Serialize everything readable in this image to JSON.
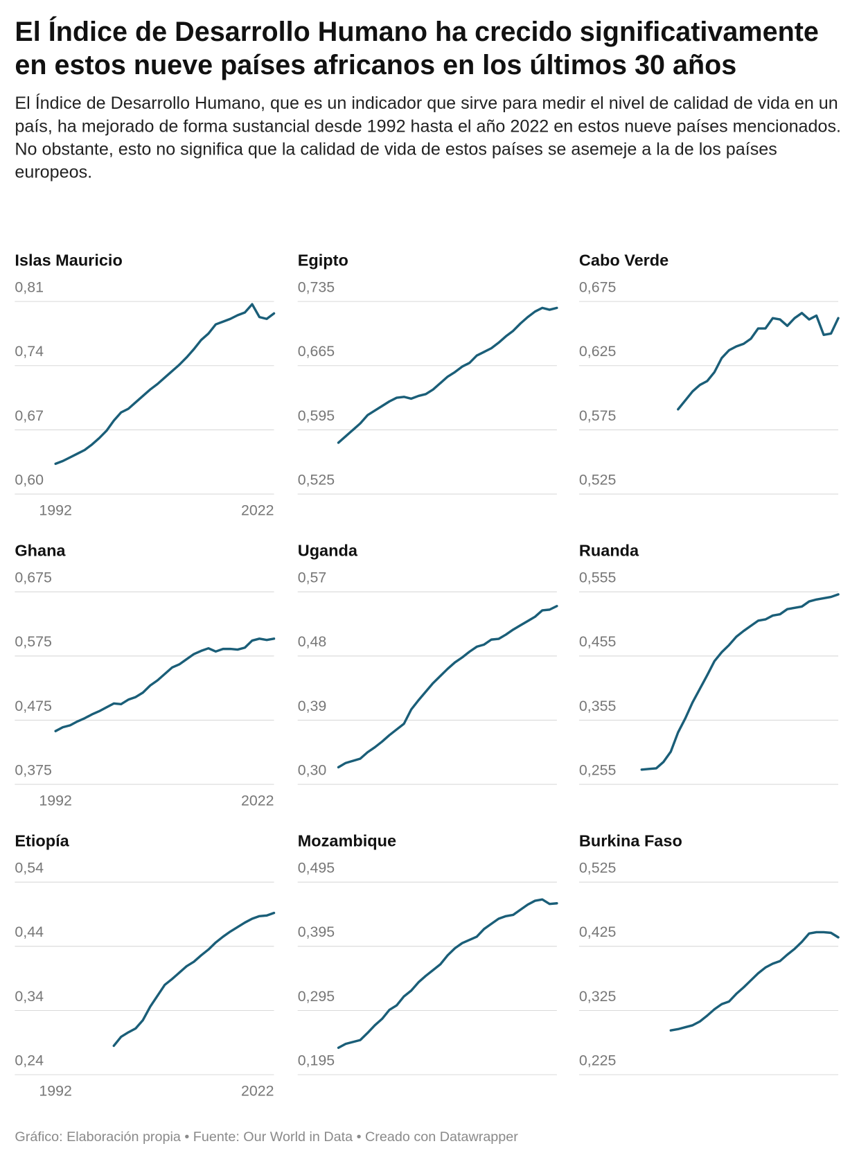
{
  "title": "El Índice de Desarrollo Humano ha crecido significativamente en estos nueve países africanos en los últimos 30 años",
  "subtitle": "El Índice de Desarrollo Humano, que es un indicador que sirve para medir el nivel de calidad de vida en un país, ha mejorado de forma sustancial desde 1992 hasta el año 2022 en estos nueve países mencionados. No obstante, esto no significa que la calidad de vida de estos países se asemeje a la de los países europeos.",
  "source": "Gráfico: Elaboración propia • Fuente: Our World in Data • Creado con Datawrapper",
  "chart_data": [
    {
      "type": "line",
      "title": "Islas Mauricio",
      "color": "#1a5e78",
      "grid": true,
      "x": [
        1992,
        1993,
        1994,
        1995,
        1996,
        1997,
        1998,
        1999,
        2000,
        2001,
        2002,
        2003,
        2004,
        2005,
        2006,
        2007,
        2008,
        2009,
        2010,
        2011,
        2012,
        2013,
        2014,
        2015,
        2016,
        2017,
        2018,
        2019,
        2020,
        2021,
        2022
      ],
      "values": [
        0.633,
        0.636,
        0.64,
        0.644,
        0.648,
        0.654,
        0.661,
        0.669,
        0.68,
        0.689,
        0.693,
        0.7,
        0.707,
        0.714,
        0.72,
        0.727,
        0.734,
        0.741,
        0.749,
        0.758,
        0.768,
        0.775,
        0.785,
        0.788,
        0.791,
        0.795,
        0.798,
        0.807,
        0.793,
        0.791,
        0.797
      ],
      "xlim": [
        1992,
        2022
      ],
      "xticks": [
        1992,
        2022
      ],
      "ylim": [
        0.6,
        0.81
      ],
      "yticks": [
        {
          "value": 0.6,
          "label": "0,60"
        },
        {
          "value": 0.67,
          "label": "0,67"
        },
        {
          "value": 0.74,
          "label": "0,74"
        },
        {
          "value": 0.81,
          "label": "0,81"
        }
      ]
    },
    {
      "type": "line",
      "title": "Egipto",
      "color": "#1a5e78",
      "grid": true,
      "x": [
        1992,
        1993,
        1994,
        1995,
        1996,
        1997,
        1998,
        1999,
        2000,
        2001,
        2002,
        2003,
        2004,
        2005,
        2006,
        2007,
        2008,
        2009,
        2010,
        2011,
        2012,
        2013,
        2014,
        2015,
        2016,
        2017,
        2018,
        2019,
        2020,
        2021,
        2022
      ],
      "values": [
        0.581,
        0.588,
        0.595,
        0.602,
        0.611,
        0.616,
        0.621,
        0.626,
        0.63,
        0.631,
        0.629,
        0.632,
        0.634,
        0.639,
        0.646,
        0.653,
        0.658,
        0.664,
        0.668,
        0.676,
        0.68,
        0.684,
        0.69,
        0.697,
        0.703,
        0.711,
        0.718,
        0.724,
        0.728,
        0.726,
        0.728
      ],
      "xlim": [
        1992,
        2022
      ],
      "ylim": [
        0.525,
        0.735
      ],
      "yticks": [
        {
          "value": 0.525,
          "label": "0,525"
        },
        {
          "value": 0.595,
          "label": "0,595"
        },
        {
          "value": 0.665,
          "label": "0,665"
        },
        {
          "value": 0.735,
          "label": "0,735"
        }
      ]
    },
    {
      "type": "line",
      "title": "Cabo Verde",
      "color": "#1a5e78",
      "grid": true,
      "x": [
        1992,
        1993,
        1994,
        1995,
        1996,
        1997,
        1998,
        1999,
        2000,
        2001,
        2002,
        2003,
        2004,
        2005,
        2006,
        2007,
        2008,
        2009,
        2010,
        2011,
        2012,
        2013,
        2014,
        2015,
        2016,
        2017,
        2018,
        2019,
        2020,
        2021,
        2022
      ],
      "values": [
        null,
        null,
        null,
        null,
        null,
        null,
        null,
        null,
        0.591,
        0.598,
        0.605,
        0.61,
        0.613,
        0.62,
        0.631,
        0.637,
        0.64,
        0.642,
        0.646,
        0.654,
        0.654,
        0.662,
        0.661,
        0.656,
        0.662,
        0.666,
        0.661,
        0.664,
        0.649,
        0.65,
        0.662
      ],
      "xlim": [
        1992,
        2022
      ],
      "ylim": [
        0.525,
        0.675
      ],
      "yticks": [
        {
          "value": 0.525,
          "label": "0,525"
        },
        {
          "value": 0.575,
          "label": "0,575"
        },
        {
          "value": 0.625,
          "label": "0,625"
        },
        {
          "value": 0.675,
          "label": "0,675"
        }
      ]
    },
    {
      "type": "line",
      "title": "Ghana",
      "color": "#1a5e78",
      "grid": true,
      "x": [
        1992,
        1993,
        1994,
        1995,
        1996,
        1997,
        1998,
        1999,
        2000,
        2001,
        2002,
        2003,
        2004,
        2005,
        2006,
        2007,
        2008,
        2009,
        2010,
        2011,
        2012,
        2013,
        2014,
        2015,
        2016,
        2017,
        2018,
        2019,
        2020,
        2021,
        2022
      ],
      "values": [
        0.458,
        0.464,
        0.467,
        0.473,
        0.478,
        0.484,
        0.489,
        0.495,
        0.501,
        0.5,
        0.507,
        0.511,
        0.518,
        0.529,
        0.537,
        0.547,
        0.557,
        0.562,
        0.57,
        0.578,
        0.583,
        0.587,
        0.582,
        0.586,
        0.586,
        0.585,
        0.588,
        0.599,
        0.602,
        0.6,
        0.602
      ],
      "xlim": [
        1992,
        2022
      ],
      "xticks": [
        1992,
        2022
      ],
      "ylim": [
        0.375,
        0.675
      ],
      "yticks": [
        {
          "value": 0.375,
          "label": "0,375"
        },
        {
          "value": 0.475,
          "label": "0,475"
        },
        {
          "value": 0.575,
          "label": "0,575"
        },
        {
          "value": 0.675,
          "label": "0,675"
        }
      ]
    },
    {
      "type": "line",
      "title": "Uganda",
      "color": "#1a5e78",
      "grid": true,
      "x": [
        1992,
        1993,
        1994,
        1995,
        1996,
        1997,
        1998,
        1999,
        2000,
        2001,
        2002,
        2003,
        2004,
        2005,
        2006,
        2007,
        2008,
        2009,
        2010,
        2011,
        2012,
        2013,
        2014,
        2015,
        2016,
        2017,
        2018,
        2019,
        2020,
        2021,
        2022
      ],
      "values": [
        0.324,
        0.33,
        0.333,
        0.336,
        0.345,
        0.352,
        0.36,
        0.369,
        0.377,
        0.385,
        0.405,
        0.418,
        0.43,
        0.442,
        0.452,
        0.462,
        0.471,
        0.478,
        0.486,
        0.493,
        0.496,
        0.503,
        0.504,
        0.51,
        0.517,
        0.523,
        0.529,
        0.535,
        0.544,
        0.545,
        0.55
      ],
      "xlim": [
        1992,
        2022
      ],
      "ylim": [
        0.3,
        0.57
      ],
      "yticks": [
        {
          "value": 0.3,
          "label": "0,30"
        },
        {
          "value": 0.39,
          "label": "0,39"
        },
        {
          "value": 0.48,
          "label": "0,48"
        },
        {
          "value": 0.57,
          "label": "0,57"
        }
      ]
    },
    {
      "type": "line",
      "title": "Ruanda",
      "color": "#1a5e78",
      "grid": true,
      "x": [
        1992,
        1993,
        1994,
        1995,
        1996,
        1997,
        1998,
        1999,
        2000,
        2001,
        2002,
        2003,
        2004,
        2005,
        2006,
        2007,
        2008,
        2009,
        2010,
        2011,
        2012,
        2013,
        2014,
        2015,
        2016,
        2017,
        2018,
        2019,
        2020,
        2021,
        2022
      ],
      "values": [
        null,
        null,
        null,
        0.278,
        0.279,
        0.28,
        0.29,
        0.306,
        0.336,
        0.358,
        0.383,
        0.404,
        0.425,
        0.447,
        0.461,
        0.472,
        0.485,
        0.494,
        0.502,
        0.51,
        0.512,
        0.518,
        0.52,
        0.528,
        0.53,
        0.532,
        0.54,
        0.543,
        0.545,
        0.547,
        0.551
      ],
      "xlim": [
        1992,
        2022
      ],
      "ylim": [
        0.255,
        0.555
      ],
      "yticks": [
        {
          "value": 0.255,
          "label": "0,255"
        },
        {
          "value": 0.355,
          "label": "0,355"
        },
        {
          "value": 0.455,
          "label": "0,455"
        },
        {
          "value": 0.555,
          "label": "0,555"
        }
      ]
    },
    {
      "type": "line",
      "title": "Etiopía",
      "color": "#1a5e78",
      "grid": true,
      "x": [
        1992,
        1993,
        1994,
        1995,
        1996,
        1997,
        1998,
        1999,
        2000,
        2001,
        2002,
        2003,
        2004,
        2005,
        2006,
        2007,
        2008,
        2009,
        2010,
        2011,
        2012,
        2013,
        2014,
        2015,
        2016,
        2017,
        2018,
        2019,
        2020,
        2021,
        2022
      ],
      "values": [
        null,
        null,
        null,
        null,
        null,
        null,
        null,
        null,
        0.285,
        0.299,
        0.306,
        0.312,
        0.325,
        0.346,
        0.363,
        0.38,
        0.389,
        0.399,
        0.409,
        0.416,
        0.426,
        0.435,
        0.446,
        0.455,
        0.463,
        0.47,
        0.477,
        0.483,
        0.487,
        0.488,
        0.492
      ],
      "xlim": [
        1992,
        2022
      ],
      "xticks": [
        1992,
        2022
      ],
      "ylim": [
        0.24,
        0.54
      ],
      "yticks": [
        {
          "value": 0.24,
          "label": "0,24"
        },
        {
          "value": 0.34,
          "label": "0,34"
        },
        {
          "value": 0.44,
          "label": "0,44"
        },
        {
          "value": 0.54,
          "label": "0,54"
        }
      ]
    },
    {
      "type": "line",
      "title": "Mozambique",
      "color": "#1a5e78",
      "grid": true,
      "x": [
        1992,
        1993,
        1994,
        1995,
        1996,
        1997,
        1998,
        1999,
        2000,
        2001,
        2002,
        2003,
        2004,
        2005,
        2006,
        2007,
        2008,
        2009,
        2010,
        2011,
        2012,
        2013,
        2014,
        2015,
        2016,
        2017,
        2018,
        2019,
        2020,
        2021,
        2022
      ],
      "values": [
        0.237,
        0.243,
        0.246,
        0.249,
        0.26,
        0.272,
        0.282,
        0.296,
        0.303,
        0.317,
        0.326,
        0.339,
        0.349,
        0.358,
        0.367,
        0.381,
        0.392,
        0.4,
        0.405,
        0.41,
        0.422,
        0.43,
        0.438,
        0.442,
        0.444,
        0.452,
        0.46,
        0.466,
        0.468,
        0.461,
        0.462
      ],
      "xlim": [
        1992,
        2022
      ],
      "ylim": [
        0.195,
        0.495
      ],
      "yticks": [
        {
          "value": 0.195,
          "label": "0,195"
        },
        {
          "value": 0.295,
          "label": "0,295"
        },
        {
          "value": 0.395,
          "label": "0,395"
        },
        {
          "value": 0.495,
          "label": "0,495"
        }
      ]
    },
    {
      "type": "line",
      "title": "Burkina Faso",
      "color": "#1a5e78",
      "grid": true,
      "x": [
        1992,
        1993,
        1994,
        1995,
        1996,
        1997,
        1998,
        1999,
        2000,
        2001,
        2002,
        2003,
        2004,
        2005,
        2006,
        2007,
        2008,
        2009,
        2010,
        2011,
        2012,
        2013,
        2014,
        2015,
        2016,
        2017,
        2018,
        2019,
        2020,
        2021,
        2022
      ],
      "values": [
        null,
        null,
        null,
        null,
        null,
        null,
        null,
        0.294,
        0.296,
        0.299,
        0.302,
        0.308,
        0.317,
        0.327,
        0.335,
        0.339,
        0.351,
        0.361,
        0.372,
        0.383,
        0.392,
        0.398,
        0.402,
        0.412,
        0.421,
        0.432,
        0.445,
        0.447,
        0.447,
        0.446,
        0.439
      ],
      "xlim": [
        1992,
        2022
      ],
      "ylim": [
        0.225,
        0.525
      ],
      "yticks": [
        {
          "value": 0.225,
          "label": "0,225"
        },
        {
          "value": 0.325,
          "label": "0,325"
        },
        {
          "value": 0.425,
          "label": "0,425"
        },
        {
          "value": 0.525,
          "label": "0,525"
        }
      ]
    }
  ]
}
